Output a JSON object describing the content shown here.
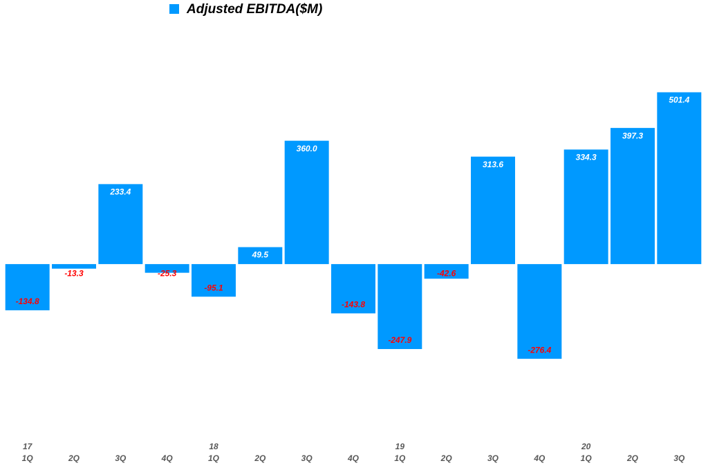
{
  "chart_data": {
    "type": "bar",
    "legend": "Adjusted EBITDA($M)",
    "categories": [
      "1Q",
      "2Q",
      "3Q",
      "4Q",
      "1Q",
      "2Q",
      "3Q",
      "4Q",
      "1Q",
      "2Q",
      "3Q",
      "4Q",
      "1Q",
      "2Q",
      "3Q"
    ],
    "category_groups": [
      "17",
      null,
      null,
      null,
      "18",
      null,
      null,
      null,
      "19",
      null,
      null,
      null,
      "20",
      null,
      null
    ],
    "values": [
      -134.8,
      -13.3,
      233.4,
      -25.3,
      -95.1,
      49.5,
      360,
      -143.8,
      -247.9,
      -42.6,
      313.6,
      -276.4,
      334.3,
      397.3,
      501.4
    ],
    "value_labels": [
      "-134.8",
      "-13.3",
      "233.4",
      "-25.3",
      "-95.1",
      "49.5",
      "360.0",
      "-143.8",
      "-247.9",
      "-42.6",
      "313.6",
      "-276.4",
      "334.3",
      "397.3",
      "501.4"
    ],
    "color": "#0099ff",
    "positive_label_color": "#ffffff",
    "negative_label_color": "#ff0000",
    "ylim": [
      -500,
      690
    ]
  }
}
